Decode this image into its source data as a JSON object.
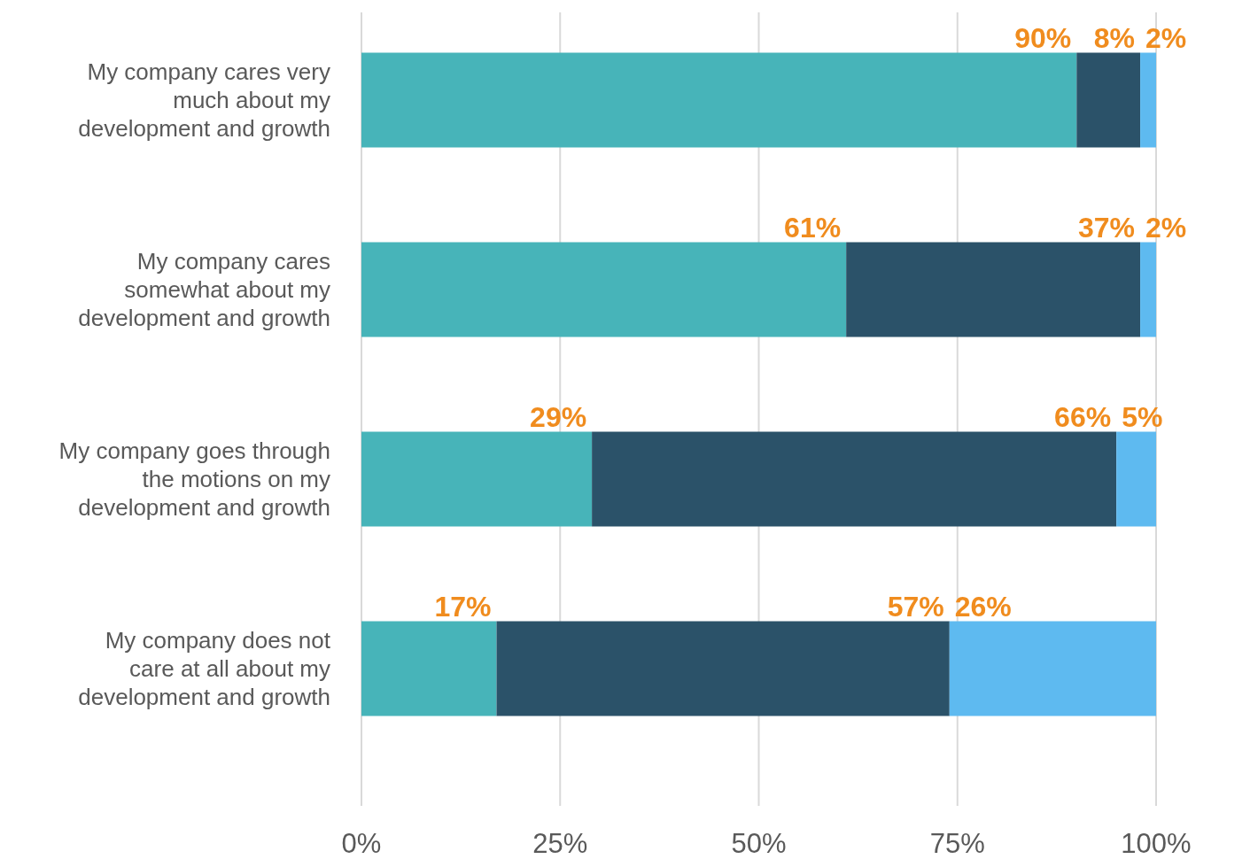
{
  "chart_data": {
    "type": "bar",
    "orientation": "horizontal",
    "stacked": true,
    "categories": [
      "My company cares very much about my development and growth",
      "My company cares somewhat about my development and growth",
      "My company goes through the motions on my development and growth",
      "My company does not care at all about my development and growth"
    ],
    "series": [
      {
        "color": "#47b4b9",
        "values": [
          90,
          61,
          29,
          17
        ],
        "value_labels": [
          "90%",
          "61%",
          "29%",
          "17%"
        ]
      },
      {
        "color": "#2b5269",
        "values": [
          8,
          37,
          66,
          57
        ],
        "value_labels": [
          "8%",
          "37%",
          "66%",
          "57%"
        ]
      },
      {
        "color": "#5ebaf0",
        "values": [
          2,
          2,
          5,
          26
        ],
        "value_labels": [
          "2%",
          "2%",
          "5%",
          "26%"
        ]
      }
    ],
    "xlim": [
      0,
      100
    ],
    "xticks": [
      {
        "value": 0,
        "label": "0%"
      },
      {
        "value": 25,
        "label": "25%"
      },
      {
        "value": 50,
        "label": "50%"
      },
      {
        "value": 75,
        "label": "75%"
      },
      {
        "value": 100,
        "label": "100%"
      }
    ],
    "grid": "x"
  }
}
